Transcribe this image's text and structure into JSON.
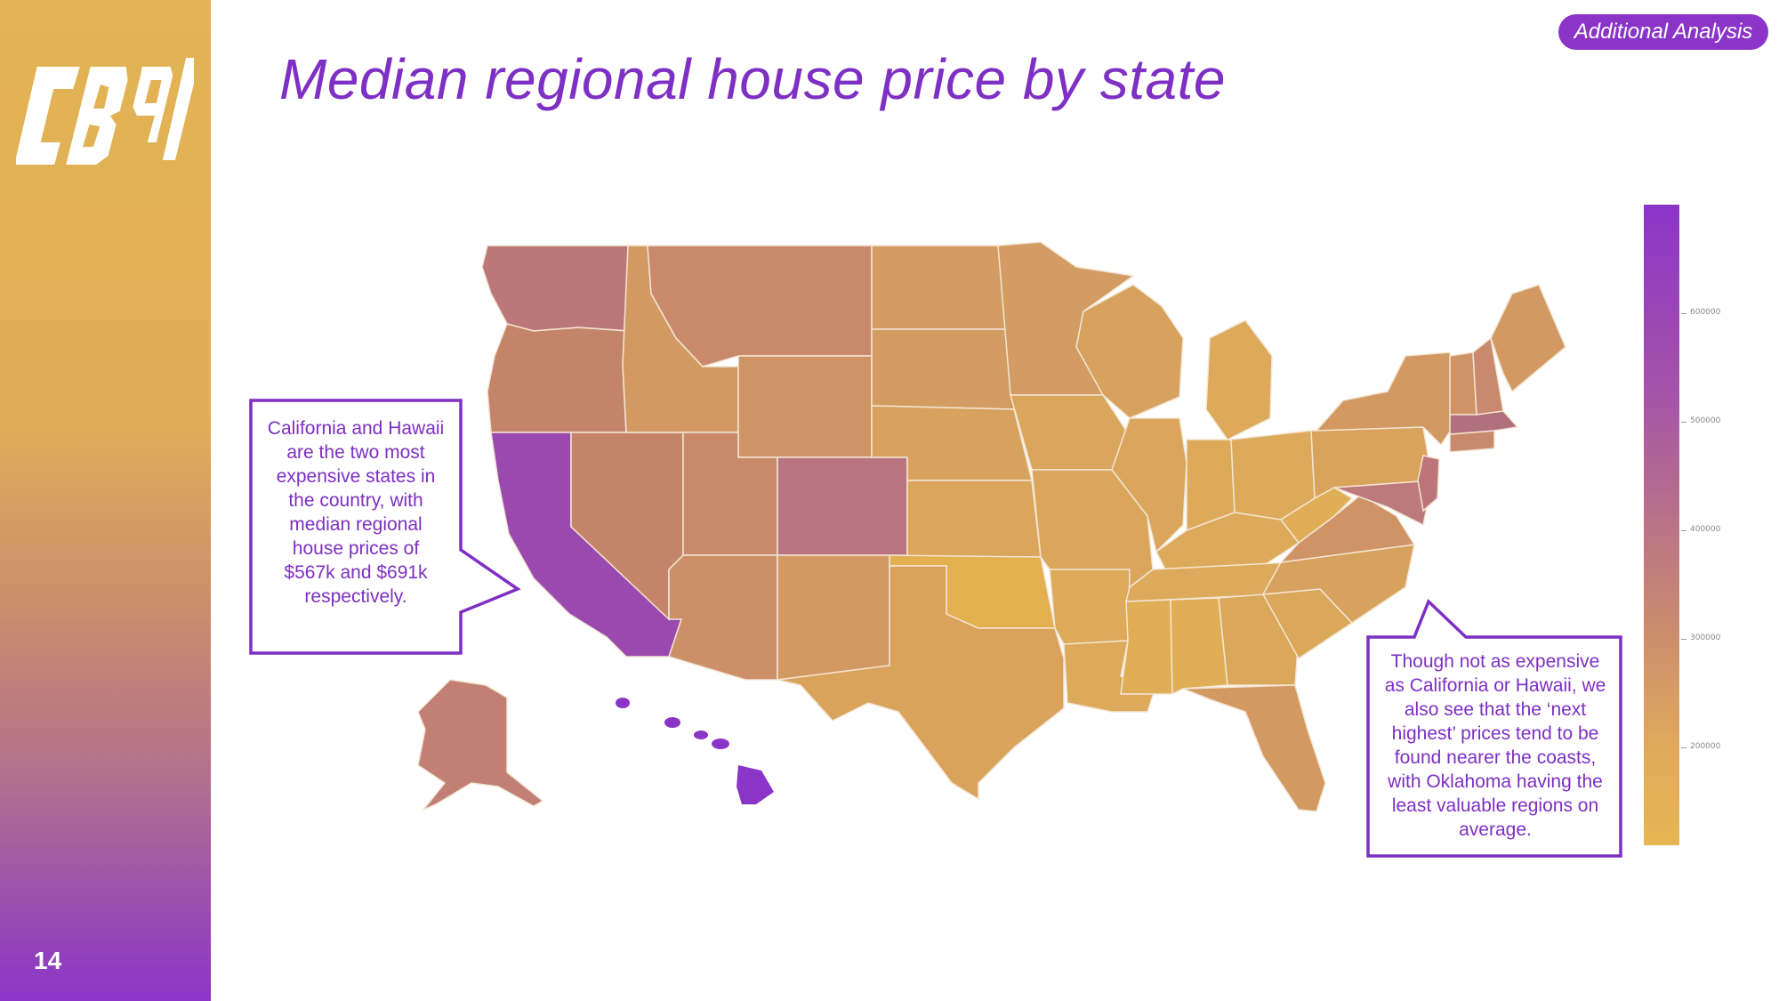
{
  "slide": {
    "title": "Median regional house price by state",
    "badge": "Additional Analysis",
    "page_number": "14",
    "logo_text": "CB91"
  },
  "callouts": {
    "left": "California and Hawaii are the two most expensive states in the country, with median regional house prices of $567k and $691k respectively.",
    "right": "Though not as expensive as California or Hawaii, we also see that the ‘next highest’ prices tend to be found nearer the coasts, with Oklahoma having the least valuable regions on average."
  },
  "colorbar": {
    "ticks": [
      "600000",
      "500000",
      "400000",
      "300000",
      "200000"
    ],
    "range": [
      110000,
      700000
    ],
    "color_low": "#e6b653",
    "color_high": "#8a35c8"
  },
  "colors": {
    "accent": "#7e2fc4",
    "california": "#9a49ae",
    "hawaii": "#8a35c8",
    "oklahoma": "#e3b050"
  },
  "chart_data": {
    "type": "choropleth",
    "title": "Median regional house price by state",
    "values": {
      "California": 567000,
      "Hawaii": 691000
    },
    "lowest": "Oklahoma"
  }
}
